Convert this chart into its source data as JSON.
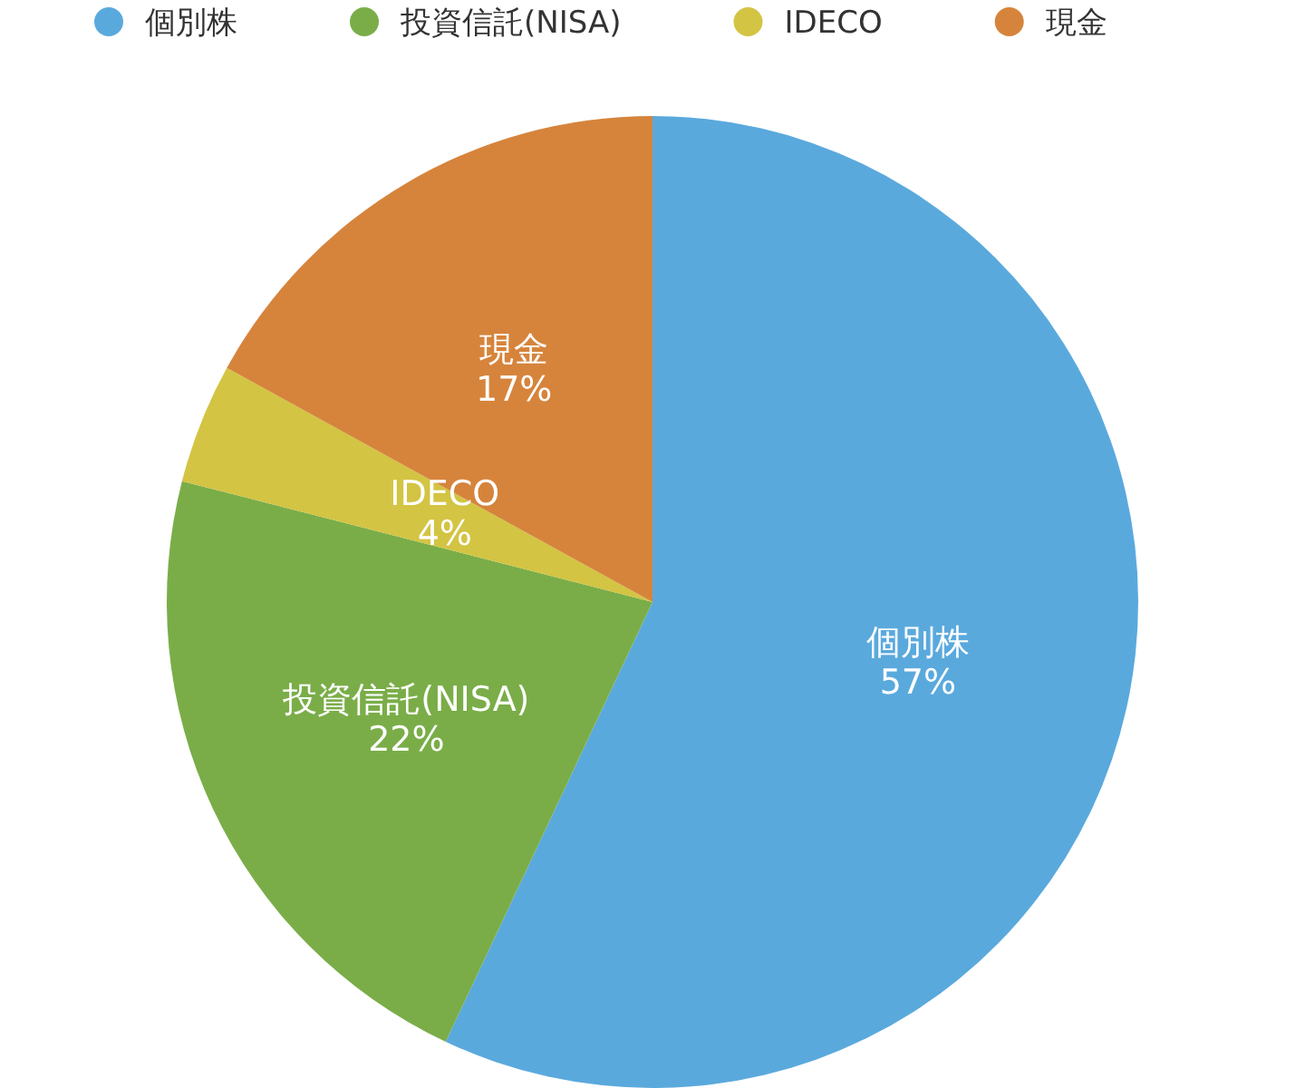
{
  "chart_data": {
    "type": "pie",
    "categories": [
      "個別株",
      "投資信託(NISA)",
      "IDECO",
      "現金"
    ],
    "values": [
      57,
      22,
      4,
      17
    ],
    "colors": [
      "#5aa9dd",
      "#7aad48",
      "#d3c443",
      "#d6843c"
    ],
    "value_labels": [
      "57%",
      "22%",
      "4%",
      "17%"
    ],
    "legend": "top"
  }
}
